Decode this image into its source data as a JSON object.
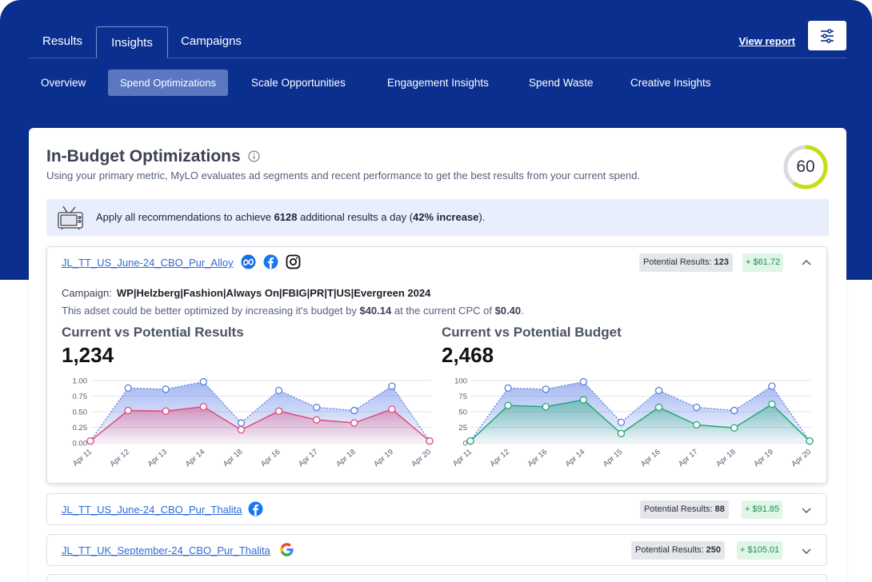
{
  "top_tabs": [
    {
      "label": "Results"
    },
    {
      "label": "Insights"
    },
    {
      "label": "Campaigns"
    }
  ],
  "header": {
    "view_report": "View report"
  },
  "sub_tabs": [
    {
      "label": "Overview"
    },
    {
      "label": "Spend Optimizations"
    },
    {
      "label": "Scale Opportunities"
    },
    {
      "label": "Engagement Insights"
    },
    {
      "label": "Spend Waste"
    },
    {
      "label": "Creative Insights"
    }
  ],
  "card": {
    "title": "In-Budget Optimizations",
    "description": "Using your primary metric, MyLO evaluates ad segments and recent performance to get the best results from your current spend.",
    "score": "60"
  },
  "banner": {
    "text_before": "Apply all recommendations to achieve ",
    "results": "6128",
    "text_middle": " additional results a day (",
    "increase": "42% increase",
    "text_after": ")."
  },
  "adsets": [
    {
      "name": "JL_TT_US_June-24_CBO_Pur_Alloy",
      "platforms": [
        "meta-icon",
        "facebook-icon",
        "instagram-icon"
      ],
      "potential_label": "Potential Results:",
      "potential_value": "123",
      "gain": "+ $61.72",
      "campaign_label": "Campaign:",
      "campaign_value": "WP|Helzberg|Fashion|Always On|FBIG|PR|T|US|Evergreen 2024",
      "desc_before": "This adset could be better optimized by increasing it's budget by ",
      "desc_budget": "$40.14",
      "desc_middle": " at the current CPC of ",
      "desc_cpc": "$0.40",
      "desc_after": "."
    },
    {
      "name": "JL_TT_US_June-24_CBO_Pur_Thalita",
      "platforms": [
        "facebook-icon"
      ],
      "potential_label": "Potential Results:",
      "potential_value": "88",
      "gain": "+ $91.85"
    },
    {
      "name": "JL_TT_UK_September-24_CBO_Pur_Thalita",
      "platforms": [
        "google-icon"
      ],
      "potential_label": "Potential Results:",
      "potential_value": "250",
      "gain": "+ $105.01"
    }
  ],
  "chart_data": [
    {
      "type": "area",
      "title": "Current vs Potential Results",
      "big_value": "1,234",
      "categories": [
        "Apr 11",
        "Apr 12",
        "Apr 13",
        "Apr 14",
        "Apr 18",
        "Apr 16",
        "Apr 17",
        "Apr 18",
        "Apr 19",
        "Apr 20"
      ],
      "yticks": [
        "1.00",
        "0.75",
        "0.50",
        "0.25",
        "0.00"
      ],
      "ylim": [
        0,
        1
      ],
      "grid": true,
      "series": [
        {
          "values": [
            0.03,
            0.88,
            0.86,
            0.98,
            0.32,
            0.84,
            0.57,
            0.52,
            0.91,
            0.03
          ],
          "color": "#5b7ee6"
        },
        {
          "values": [
            0.03,
            0.52,
            0.51,
            0.58,
            0.21,
            0.51,
            0.37,
            0.32,
            0.54,
            0.03
          ],
          "color": "#e04a7b"
        }
      ]
    },
    {
      "type": "area",
      "title": "Current vs Potential Budget",
      "big_value": "2,468",
      "categories": [
        "Apr 11",
        "Apr 12",
        "Apr 16",
        "Apr 14",
        "Apr 15",
        "Apr 16",
        "Apr 17",
        "Apr 18",
        "Apr 19",
        "Apr 20"
      ],
      "yticks": [
        "100",
        "75",
        "50",
        "25",
        "0"
      ],
      "ylim": [
        0,
        100
      ],
      "grid": true,
      "series": [
        {
          "values": [
            3,
            88,
            86,
            98,
            33,
            84,
            57,
            52,
            91,
            3
          ],
          "color": "#5b7ee6"
        },
        {
          "values": [
            3,
            60,
            58,
            69,
            15,
            57,
            29,
            24,
            62,
            3
          ],
          "color": "#22a878"
        }
      ]
    }
  ]
}
